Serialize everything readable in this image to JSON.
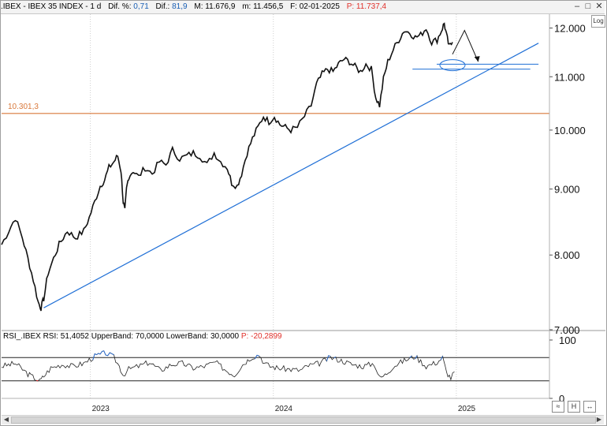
{
  "header": {
    "symbol": ".IBEX - IBEX 35 INDEX - 1 d",
    "dif_pct_label": "Dif. %:",
    "dif_pct_value": "0,71",
    "dif_label": "Dif.:",
    "dif_value": "81,9",
    "max": "M: 11.676,9",
    "min": "m: 11.456,5",
    "date": "F: 02-01-2025",
    "price": "P: 11.737,4"
  },
  "window_controls": {
    "minimize": "–",
    "maximize": "□",
    "close": "✕"
  },
  "log_button": "Log",
  "rsi_header": {
    "text": "RSI_.IBEX  RSI: 51,4052  UpperBand: 70,0000  LowerBand: 30,0000",
    "price": "P: -20,2899"
  },
  "level_label": "10.301,3",
  "colors": {
    "price": "#111111",
    "trendline": "#1f6fd6",
    "support": "#d9783a",
    "rsi": "#222222",
    "rsi_over": "#2f6fd0",
    "rsi_under": "#d62020"
  },
  "bottom_buttons": [
    "≈",
    "H",
    "↔"
  ],
  "chart_data": [
    {
      "type": "line",
      "title": ".IBEX - IBEX 35 INDEX - 1 d",
      "scale": "log",
      "ylim": [
        7000,
        12300
      ],
      "y_ticks": [
        "12.000",
        "11.000",
        "10.000",
        "9.000",
        "8.000",
        "7.000"
      ],
      "y_tick_values": [
        12000,
        11000,
        10000,
        9000,
        8000,
        7000
      ],
      "x_ticks": [
        "2023",
        "2024",
        "2025"
      ],
      "x_tick_index": [
        0.162,
        0.496,
        0.83
      ],
      "series": [
        {
          "x": [
            0.0,
            0.013,
            0.025,
            0.038,
            0.048,
            0.058,
            0.067,
            0.072,
            0.077,
            0.085,
            0.095,
            0.105,
            0.12,
            0.135,
            0.15,
            0.16,
            0.17,
            0.18,
            0.188,
            0.196,
            0.205,
            0.212,
            0.218,
            0.222,
            0.225,
            0.228,
            0.232,
            0.24,
            0.25,
            0.262,
            0.275,
            0.288,
            0.3,
            0.312,
            0.325,
            0.338,
            0.35,
            0.362,
            0.375,
            0.388,
            0.4,
            0.412,
            0.42,
            0.43,
            0.438,
            0.448,
            0.458,
            0.468,
            0.478,
            0.488,
            0.498,
            0.508,
            0.518,
            0.528,
            0.54,
            0.553,
            0.565,
            0.575,
            0.585,
            0.595,
            0.605,
            0.615,
            0.625,
            0.635,
            0.645,
            0.655,
            0.665,
            0.675,
            0.683,
            0.69,
            0.697,
            0.705,
            0.715,
            0.725,
            0.735,
            0.745,
            0.755,
            0.765,
            0.775,
            0.785,
            0.795,
            0.803,
            0.808,
            0.812,
            0.817,
            0.823
          ],
          "y": [
            8150,
            8350,
            8550,
            8250,
            7950,
            7650,
            7350,
            7280,
            7400,
            7750,
            7950,
            8150,
            8350,
            8250,
            8350,
            8550,
            8800,
            9050,
            9150,
            9350,
            9450,
            9550,
            9300,
            8800,
            8650,
            9000,
            9200,
            9300,
            9200,
            9350,
            9250,
            9450,
            9400,
            9650,
            9500,
            9550,
            9600,
            9550,
            9400,
            9600,
            9450,
            9350,
            9100,
            9050,
            9250,
            9600,
            9850,
            10050,
            10250,
            10150,
            10250,
            10100,
            10050,
            10000,
            10050,
            10250,
            10450,
            10850,
            11050,
            11150,
            11100,
            11250,
            11350,
            11300,
            11200,
            11100,
            11250,
            11150,
            10600,
            10450,
            10950,
            11300,
            11550,
            11750,
            11950,
            11900,
            11800,
            11850,
            12000,
            11700,
            11750,
            11950,
            12100,
            11850,
            11600,
            11700
          ]
        }
      ],
      "annotations": {
        "support_level": 10301.3,
        "support_label": "10.301,3",
        "trendline": [
          [
            0.077,
            7280
          ],
          [
            0.98,
            11680
          ]
        ],
        "support_band": [
          11150,
          11250
        ],
        "projection": [
          [
            0.823,
            11450
          ],
          [
            0.845,
            11950
          ],
          [
            0.87,
            11300
          ]
        ]
      }
    },
    {
      "type": "line",
      "title": "RSI_.IBEX",
      "ylim": [
        0,
        100
      ],
      "y_ticks": [
        "100",
        "0"
      ],
      "y_tick_values": [
        100,
        0
      ],
      "bands": [
        30,
        70
      ],
      "series": [
        {
          "name": "RSI",
          "x": [
            0.0,
            0.025,
            0.048,
            0.06,
            0.07,
            0.077,
            0.09,
            0.11,
            0.13,
            0.15,
            0.17,
            0.19,
            0.205,
            0.215,
            0.222,
            0.232,
            0.25,
            0.27,
            0.29,
            0.31,
            0.33,
            0.35,
            0.37,
            0.39,
            0.41,
            0.425,
            0.44,
            0.455,
            0.47,
            0.48,
            0.49,
            0.505,
            0.525,
            0.545,
            0.56,
            0.58,
            0.6,
            0.62,
            0.64,
            0.66,
            0.68,
            0.69,
            0.7,
            0.715,
            0.735,
            0.755,
            0.775,
            0.795,
            0.805,
            0.812,
            0.82,
            0.83
          ],
          "y": [
            55,
            60,
            42,
            35,
            30,
            38,
            52,
            58,
            55,
            60,
            72,
            78,
            70,
            55,
            40,
            50,
            55,
            62,
            48,
            58,
            60,
            52,
            55,
            62,
            48,
            40,
            58,
            70,
            75,
            60,
            55,
            52,
            50,
            48,
            56,
            60,
            70,
            65,
            58,
            55,
            60,
            35,
            40,
            55,
            65,
            72,
            55,
            62,
            70,
            45,
            35,
            50
          ]
        }
      ]
    }
  ]
}
